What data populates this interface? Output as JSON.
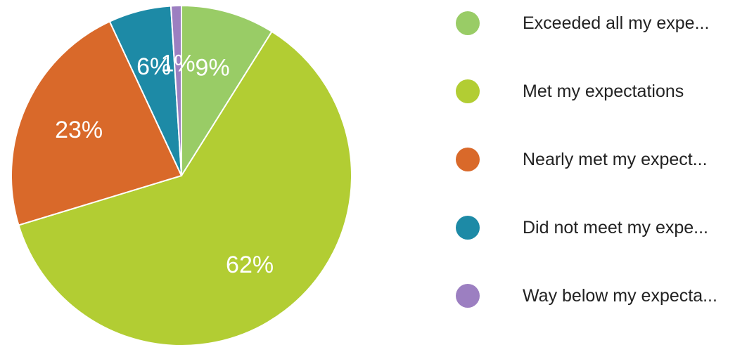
{
  "chart_data": {
    "type": "pie",
    "title": "",
    "legend_position": "right",
    "slices": [
      {
        "label": "Exceeded all my expe...",
        "value": 9,
        "display": "9%",
        "color": "#99cc66"
      },
      {
        "label": "Met my expectations",
        "value": 62,
        "display": "62%",
        "color": "#b2cd33"
      },
      {
        "label": "Nearly met my expect...",
        "value": 23,
        "display": "23%",
        "color": "#d9692a"
      },
      {
        "label": "Did not meet my expe...",
        "value": 6,
        "display": "6%",
        "color": "#1d8aa6"
      },
      {
        "label": "Way below my expecta...",
        "value": 1,
        "display": "1%",
        "color": "#9c7fc1"
      }
    ]
  }
}
